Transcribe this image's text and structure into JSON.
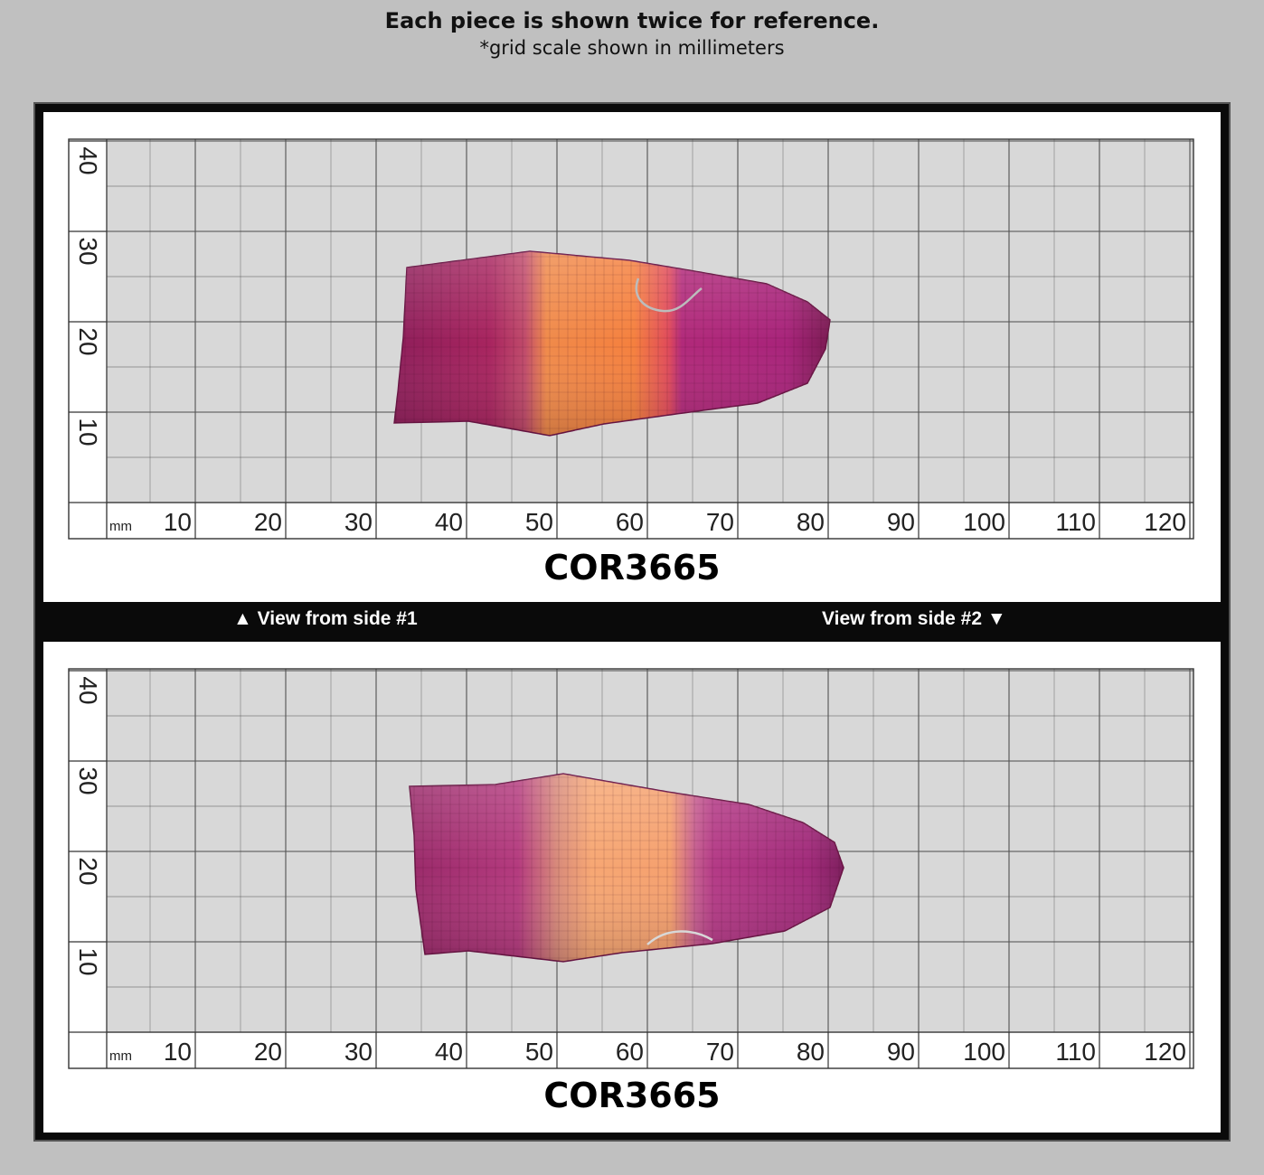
{
  "header": {
    "title": "Each piece is shown twice for reference.",
    "subtitle": "*grid scale shown in millimeters"
  },
  "views": [
    {
      "code": "COR3665",
      "side_label": "▲ View from side #1"
    },
    {
      "code": "COR3665",
      "side_label": "View from side #2 ▼"
    }
  ],
  "grid": {
    "unit": "mm",
    "x_ticks": [
      "10",
      "20",
      "30",
      "40",
      "50",
      "60",
      "70",
      "80",
      "90",
      "100",
      "110",
      "120"
    ],
    "y_ticks": [
      "40",
      "30",
      "20",
      "10"
    ]
  },
  "colors": {
    "background": "#c0c0c0",
    "frame": "#0a0a0a",
    "grid_line": "#555555",
    "stone_pink": "#b02a6a",
    "stone_orange": "#f07a3a"
  }
}
